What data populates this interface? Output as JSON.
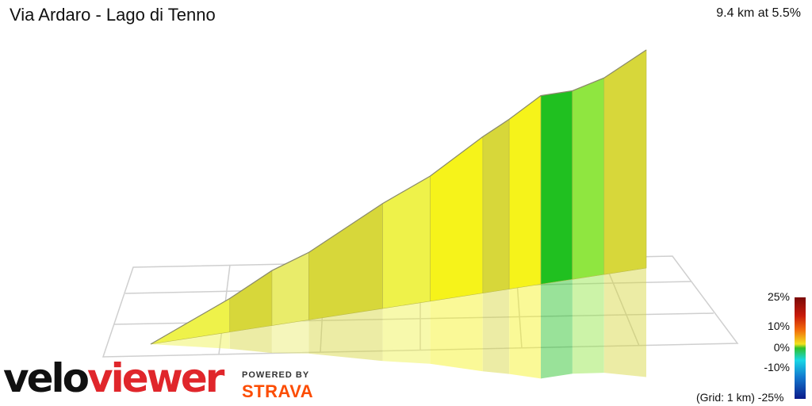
{
  "title": "Via Ardaro - Lago di Tenno",
  "summary": "9.4 km at 5.5%",
  "grid_note": "(Grid: 1 km)",
  "legend": {
    "p25": "25%",
    "p10": "10%",
    "p0": "0%",
    "m10": "-10%",
    "m25": "-25%"
  },
  "logo": {
    "part1": "velo",
    "part2": "viewer"
  },
  "powered": "POWERED BY",
  "strava": "STRAVA",
  "chart_data": {
    "type": "area",
    "distance_km": 9.4,
    "avg_gradient_pct": 5.5,
    "grid_km": 1,
    "gradient_scale_pct": [
      -25,
      -10,
      0,
      10,
      25
    ],
    "segments": [
      {
        "from_km": 0.0,
        "to_km": 1.5,
        "gradient_pct": 5
      },
      {
        "from_km": 1.5,
        "to_km": 2.3,
        "gradient_pct": 6
      },
      {
        "from_km": 2.3,
        "to_km": 3.0,
        "gradient_pct": 4
      },
      {
        "from_km": 3.0,
        "to_km": 4.4,
        "gradient_pct": 6
      },
      {
        "from_km": 4.4,
        "to_km": 5.3,
        "gradient_pct": 5
      },
      {
        "from_km": 5.3,
        "to_km": 6.3,
        "gradient_pct": 7
      },
      {
        "from_km": 6.3,
        "to_km": 6.8,
        "gradient_pct": 6
      },
      {
        "from_km": 6.8,
        "to_km": 7.4,
        "gradient_pct": 7
      },
      {
        "from_km": 7.4,
        "to_km": 8.0,
        "gradient_pct": 0
      },
      {
        "from_km": 8.0,
        "to_km": 8.6,
        "gradient_pct": 3
      },
      {
        "from_km": 8.6,
        "to_km": 9.4,
        "gradient_pct": 6
      }
    ],
    "colors": {
      "p0": "#20c020",
      "p3": "#8fe640",
      "p4": "#e9ec6a",
      "p5": "#eef24a",
      "p6": "#d7d73a",
      "p7": "#f6f31a"
    }
  }
}
